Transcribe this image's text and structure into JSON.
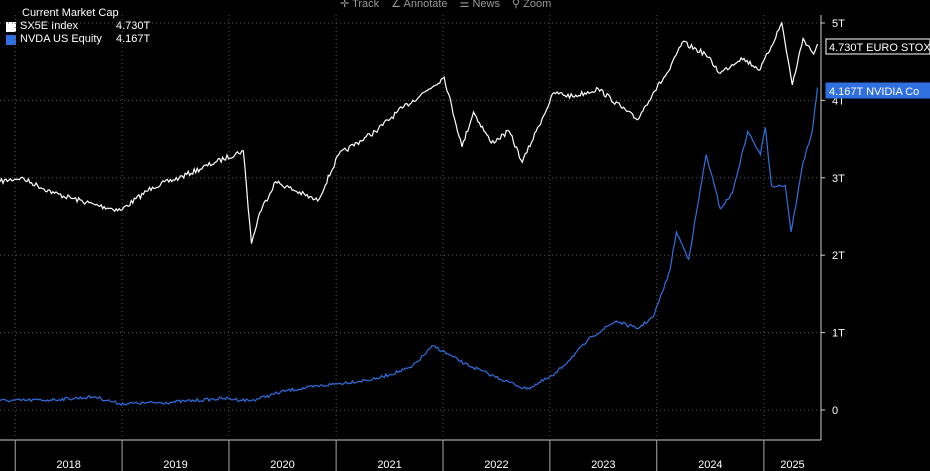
{
  "toolbar": {
    "items": [
      {
        "icon": "crosshair-icon",
        "label": "Track"
      },
      {
        "icon": "pencil-icon",
        "label": "Annotate"
      },
      {
        "icon": "news-icon",
        "label": "News"
      },
      {
        "icon": "zoom-icon",
        "label": "Zoom"
      }
    ]
  },
  "chart_data": {
    "type": "line",
    "title": "Current Market Cap",
    "xlabel": "",
    "ylabel": "",
    "grid": true,
    "legend_position": "top-left",
    "x_ticks": [
      "2018",
      "2019",
      "2020",
      "2021",
      "2022",
      "2023",
      "2024",
      "2025"
    ],
    "y_ticks": [
      "0",
      "1T",
      "2T",
      "3T",
      "4T",
      "5T"
    ],
    "ylim": [
      0,
      5.2
    ],
    "xlim": [
      "2017-11-10",
      "2025-07-15"
    ],
    "series": [
      {
        "name": "SX5E Index",
        "last_value_label": "4.730T",
        "tag_label": "4.730T EURO STOX",
        "color": "#ffffff",
        "points": [
          [
            "2017-11-10",
            2.95
          ],
          [
            "2018-01-20",
            3.0
          ],
          [
            "2018-05-15",
            2.8
          ],
          [
            "2018-10-01",
            2.65
          ],
          [
            "2018-12-27",
            2.58
          ],
          [
            "2019-04-15",
            2.88
          ],
          [
            "2019-07-15",
            3.0
          ],
          [
            "2019-11-15",
            3.2
          ],
          [
            "2020-02-19",
            3.35
          ],
          [
            "2020-03-18",
            2.15
          ],
          [
            "2020-04-15",
            2.55
          ],
          [
            "2020-06-08",
            2.95
          ],
          [
            "2020-10-30",
            2.7
          ],
          [
            "2021-01-10",
            3.3
          ],
          [
            "2021-05-15",
            3.6
          ],
          [
            "2021-08-15",
            3.9
          ],
          [
            "2021-11-15",
            4.15
          ],
          [
            "2022-01-05",
            4.3
          ],
          [
            "2022-03-07",
            3.4
          ],
          [
            "2022-04-15",
            3.85
          ],
          [
            "2022-06-15",
            3.45
          ],
          [
            "2022-08-15",
            3.6
          ],
          [
            "2022-09-29",
            3.2
          ],
          [
            "2022-11-15",
            3.6
          ],
          [
            "2023-01-15",
            4.1
          ],
          [
            "2023-03-20",
            4.05
          ],
          [
            "2023-06-15",
            4.15
          ],
          [
            "2023-10-26",
            3.75
          ],
          [
            "2023-12-20",
            4.1
          ],
          [
            "2024-02-15",
            4.4
          ],
          [
            "2024-03-28",
            4.75
          ],
          [
            "2024-06-15",
            4.6
          ],
          [
            "2024-08-05",
            4.35
          ],
          [
            "2024-10-15",
            4.55
          ],
          [
            "2024-12-20",
            4.4
          ],
          [
            "2025-03-03",
            5.0
          ],
          [
            "2025-04-08",
            4.2
          ],
          [
            "2025-05-15",
            4.8
          ],
          [
            "2025-06-20",
            4.6
          ],
          [
            "2025-07-03",
            4.73
          ]
        ]
      },
      {
        "name": "NVDA US Equity",
        "last_value_label": "4.167T",
        "tag_label": "4.167T NVIDIA Co",
        "color": "#2f6fe0",
        "points": [
          [
            "2017-11-10",
            0.12
          ],
          [
            "2018-05-01",
            0.13
          ],
          [
            "2018-10-01",
            0.17
          ],
          [
            "2018-12-24",
            0.08
          ],
          [
            "2019-06-15",
            0.1
          ],
          [
            "2019-12-15",
            0.15
          ],
          [
            "2020-03-16",
            0.12
          ],
          [
            "2020-07-15",
            0.25
          ],
          [
            "2020-12-15",
            0.33
          ],
          [
            "2021-05-15",
            0.4
          ],
          [
            "2021-09-15",
            0.55
          ],
          [
            "2021-11-29",
            0.83
          ],
          [
            "2022-03-15",
            0.6
          ],
          [
            "2022-06-15",
            0.45
          ],
          [
            "2022-10-13",
            0.27
          ],
          [
            "2023-01-15",
            0.45
          ],
          [
            "2023-05-25",
            0.95
          ],
          [
            "2023-08-15",
            1.15
          ],
          [
            "2023-10-26",
            1.05
          ],
          [
            "2023-12-20",
            1.2
          ],
          [
            "2024-02-15",
            1.8
          ],
          [
            "2024-03-08",
            2.3
          ],
          [
            "2024-04-19",
            1.95
          ],
          [
            "2024-06-18",
            3.3
          ],
          [
            "2024-08-05",
            2.6
          ],
          [
            "2024-09-15",
            2.8
          ],
          [
            "2024-11-07",
            3.6
          ],
          [
            "2024-12-20",
            3.3
          ],
          [
            "2025-01-06",
            3.65
          ],
          [
            "2025-01-27",
            2.9
          ],
          [
            "2025-03-15",
            2.9
          ],
          [
            "2025-04-04",
            2.3
          ],
          [
            "2025-05-15",
            3.2
          ],
          [
            "2025-06-15",
            3.6
          ],
          [
            "2025-07-03",
            4.167
          ]
        ]
      }
    ]
  }
}
